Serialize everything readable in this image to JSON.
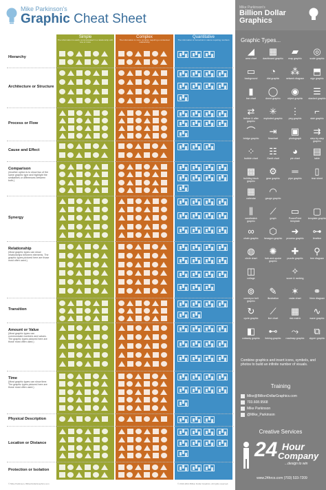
{
  "header": {
    "author": "Mike Parkinson's",
    "title_bold": "Graphic",
    "title_rest": " Cheat Sheet"
  },
  "columns": [
    {
      "label": "Simple",
      "sub": "The information is easily communicated in a relationship with one or more",
      "color": "#9ba533"
    },
    {
      "label": "Complex",
      "sub": "The information is more complex requiring a contextual relationship",
      "color": "#c96b22"
    },
    {
      "label": "Quantitative",
      "sub": "The information is numerical in nature requiring numbers",
      "color": "#3f8fc6"
    }
  ],
  "rows": [
    {
      "label": "Hierarchy",
      "desc": ""
    },
    {
      "label": "Architecture or Structure",
      "desc": ""
    },
    {
      "label": "Process or Flow",
      "desc": ""
    },
    {
      "label": "Cause and Effect",
      "desc": ""
    },
    {
      "label": "Comparison",
      "desc": "(Another option is to show two of the same graphic type and highlight the similarities or differences between both.)"
    },
    {
      "label": "Synergy",
      "desc": ""
    },
    {
      "label": "Relationship",
      "desc": "(Most graphic types can show relationships between elements. The graphic types pictured here are those most often used.)"
    },
    {
      "label": "Transition",
      "desc": ""
    },
    {
      "label": "Amount or Value",
      "desc": "(Most graphic types can communicate numbers and values. The graphic types pictured here are those most often used.)"
    },
    {
      "label": "Time",
      "desc": "(Most graphic types can show time. The graphic types pictured here are those most often used.)"
    },
    {
      "label": "Physical Description",
      "desc": ""
    },
    {
      "label": "Location or Distance",
      "desc": ""
    },
    {
      "label": "Protection or Isolation",
      "desc": ""
    }
  ],
  "sidebar": {
    "logo_small": "Mike Parkinson's",
    "logo_line1": "Billion Dollar",
    "logo_line2": "Graphics",
    "graphic_types_title": "Graphic Types...",
    "graphic_types": [
      {
        "label": "area chart",
        "icon": "area-chart-icon",
        "glyph": "◢"
      },
      {
        "label": "dashboard graphic",
        "icon": "dashboard-icon",
        "glyph": "▦"
      },
      {
        "label": "map graphic",
        "icon": "map-icon",
        "glyph": "▰"
      },
      {
        "label": "scale graphic",
        "icon": "scale-icon",
        "glyph": "◎"
      },
      {
        "label": "background",
        "icon": "background-icon",
        "glyph": "▭"
      },
      {
        "label": "dial graphic",
        "icon": "dial-icon",
        "glyph": "◔"
      },
      {
        "label": "network diagram",
        "icon": "network-icon",
        "glyph": "⁂"
      },
      {
        "label": "sign graphic",
        "icon": "sign-icon",
        "glyph": "⬒"
      },
      {
        "label": "bar chart",
        "icon": "bar-chart-icon",
        "glyph": "▮"
      },
      {
        "label": "donut graphic",
        "icon": "donut-icon",
        "glyph": "◯"
      },
      {
        "label": "object graphic",
        "icon": "object-icon",
        "glyph": "◉"
      },
      {
        "label": "stacked graphic",
        "icon": "stacked-icon",
        "glyph": "☰"
      },
      {
        "label": "before & after graphic",
        "icon": "before-after-icon",
        "glyph": "⇄"
      },
      {
        "label": "exploded graphic",
        "icon": "exploded-icon",
        "glyph": "✳"
      },
      {
        "label": "peg graphic",
        "icon": "peg-icon",
        "glyph": "⋮"
      },
      {
        "label": "stair graphic",
        "icon": "stair-icon",
        "glyph": "⌐"
      },
      {
        "label": "bridge graphic",
        "icon": "bridge-icon",
        "glyph": "⌒"
      },
      {
        "label": "flowchart",
        "icon": "flowchart-icon",
        "glyph": "⇥"
      },
      {
        "label": "photograph",
        "icon": "photograph-icon",
        "glyph": "▣"
      },
      {
        "label": "step-by-step graphic",
        "icon": "step-icon",
        "glyph": "⇉"
      },
      {
        "label": "bubble chart",
        "icon": "bubble-chart-icon",
        "glyph": "⁘"
      },
      {
        "label": "Gantt chart",
        "icon": "gantt-icon",
        "glyph": "☷"
      },
      {
        "label": "pie chart",
        "icon": "pie-chart-icon",
        "glyph": "◕"
      },
      {
        "label": "table",
        "icon": "table-icon",
        "glyph": "▤"
      },
      {
        "label": "building block graphic",
        "icon": "building-block-icon",
        "glyph": "▩"
      },
      {
        "label": "gear graphic",
        "icon": "gear-icon",
        "glyph": "⚙"
      },
      {
        "label": "pipe graphic",
        "icon": "pipe-icon",
        "glyph": "═"
      },
      {
        "label": "tear sheet",
        "icon": "tear-sheet-icon",
        "glyph": "▯"
      },
      {
        "label": "calendar",
        "icon": "calendar-icon",
        "glyph": "▦"
      },
      {
        "label": "gauge graphic",
        "icon": "gauge-icon",
        "glyph": "◠"
      },
      {
        "label": "",
        "icon": "blank-icon",
        "glyph": ""
      },
      {
        "label": "",
        "icon": "blank-icon",
        "glyph": ""
      },
      {
        "label": "candlestick graphic",
        "icon": "candlestick-icon",
        "glyph": "⫼"
      },
      {
        "label": "graph",
        "icon": "graph-icon",
        "glyph": "⟋"
      },
      {
        "label": "PowerPoint template",
        "icon": "powerpoint-icon",
        "glyph": "▭"
      },
      {
        "label": "template graphic",
        "icon": "template-icon",
        "glyph": "▢"
      },
      {
        "label": "chain graphic",
        "icon": "chain-icon",
        "glyph": "∞"
      },
      {
        "label": "hexagon graphic",
        "icon": "hexagon-icon",
        "glyph": "⬡"
      },
      {
        "label": "process graphic",
        "icon": "process-icon",
        "glyph": "➜"
      },
      {
        "label": "timeline",
        "icon": "timeline-icon",
        "glyph": "⊶"
      },
      {
        "label": "circle chart",
        "icon": "circle-chart-icon",
        "glyph": "◍"
      },
      {
        "label": "hub-and-spoke graphic",
        "icon": "hub-spoke-icon",
        "glyph": "✺"
      },
      {
        "label": "puzzle graphic",
        "icon": "puzzle-icon",
        "glyph": "✚"
      },
      {
        "label": "tree diagram",
        "icon": "tree-icon",
        "glyph": "⚲"
      },
      {
        "label": "collage",
        "icon": "collage-icon",
        "glyph": "◫"
      },
      {
        "label": "",
        "icon": "blank-icon",
        "glyph": ""
      },
      {
        "label": "score & ranking",
        "icon": "score-icon",
        "glyph": "✧"
      },
      {
        "label": "",
        "icon": "blank-icon",
        "glyph": ""
      },
      {
        "label": "conveyor belt graphic",
        "icon": "conveyor-icon",
        "glyph": "⊚"
      },
      {
        "label": "illustration",
        "icon": "illustration-icon",
        "glyph": "✎"
      },
      {
        "label": "radar chart",
        "icon": "radar-icon",
        "glyph": "✶"
      },
      {
        "label": "Venn diagram",
        "icon": "venn-icon",
        "glyph": "⚭"
      },
      {
        "label": "cycle graphic",
        "icon": "cycle-icon",
        "glyph": "↻"
      },
      {
        "label": "line chart",
        "icon": "line-chart-icon",
        "glyph": "⟋"
      },
      {
        "label": "risk matrix",
        "icon": "risk-matrix-icon",
        "glyph": "▦"
      },
      {
        "label": "wave graphic",
        "icon": "wave-icon",
        "glyph": "∿"
      },
      {
        "label": "cutaway graphic",
        "icon": "cutaway-icon",
        "glyph": "◧"
      },
      {
        "label": "linking graphic",
        "icon": "linking-icon",
        "glyph": "⊷"
      },
      {
        "label": "roadmap graphic",
        "icon": "roadmap-icon",
        "glyph": "⤳"
      },
      {
        "label": "zipper graphic",
        "icon": "zipper-icon",
        "glyph": "⧉"
      }
    ],
    "combine_text": "Combine graphics and insert icons, symbols, and photos to build an infinite number of visuals.",
    "training_title": "Training",
    "training": [
      {
        "text": "Mike@BillionDollarGraphics.com",
        "icon": "email-icon"
      },
      {
        "text": "703.608.9568",
        "icon": "phone-icon"
      },
      {
        "text": "Mike Parkinson",
        "icon": "linkedin-icon"
      },
      {
        "text": "@Mike_Parkinson",
        "icon": "twitter-icon"
      }
    ],
    "creative_title": "Creative Services",
    "company_24": "24",
    "company_hour": "Hour",
    "company_name": "Company",
    "company_tag": "...design to win",
    "company_contact": "www.24hrco.com   (703) 533-7209"
  },
  "footer": {
    "left": "© Mike Parkinson, BillionDollarGraphics.com",
    "right": "© 2010-2014 Billion Dollar Graphics. All rights reserved."
  },
  "colors": {
    "simple": "#9ba533",
    "complex": "#c96b22",
    "quantitative": "#3f8fc6",
    "sidebar": "#7f7f7f",
    "title": "#3b6f9c"
  }
}
